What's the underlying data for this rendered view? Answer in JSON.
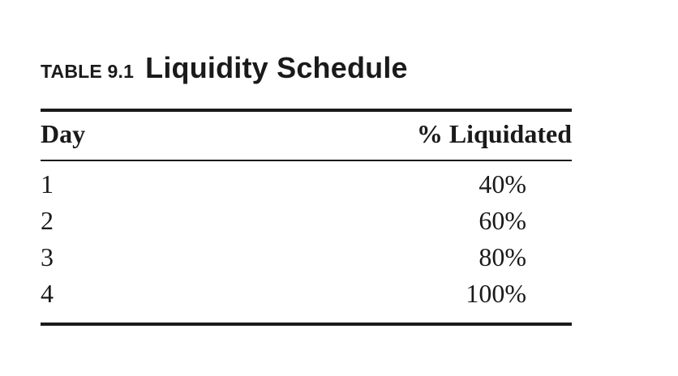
{
  "table": {
    "label": "TABLE 9.1",
    "title": "Liquidity Schedule",
    "columns": [
      "Day",
      "% Liquidated"
    ],
    "rows": [
      [
        "1",
        "40%"
      ],
      [
        "2",
        "60%"
      ],
      [
        "3",
        "80%"
      ],
      [
        "4",
        "100%"
      ]
    ]
  }
}
